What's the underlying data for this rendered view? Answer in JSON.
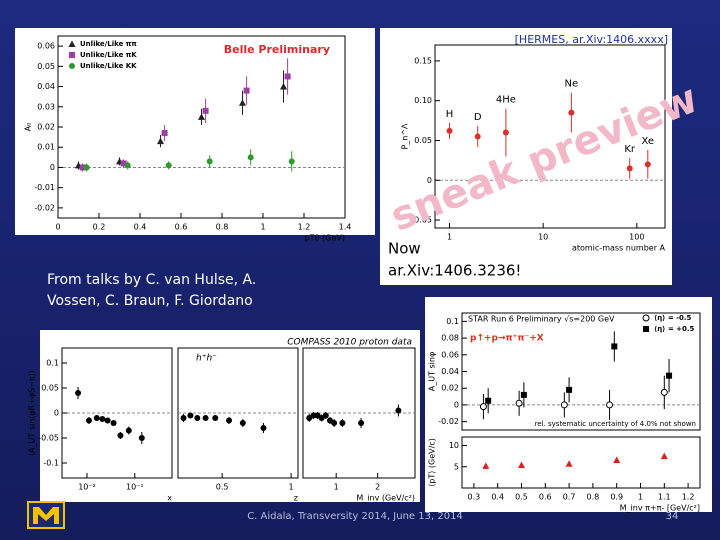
{
  "slide": {
    "credit": [
      "From talks by C. van Hulse, A.",
      "Vossen, C. Braun, F. Giordano"
    ],
    "now_note": [
      "Now",
      "ar.Xiv:1406.3236!"
    ],
    "footer": "C. Aidala, Transversity 2014, June 13, 2014",
    "page_number": "34"
  },
  "chart_data": [
    {
      "type": "scatter",
      "title": "Belle Preliminary",
      "ylabel": "A₀",
      "xlabel": "pT0 (GeV)",
      "xlim": [
        0,
        1.4
      ],
      "xticks": [
        0,
        0.2,
        0.4,
        0.6,
        0.8,
        1,
        1.2,
        1.4
      ],
      "ylim": [
        -0.025,
        0.065
      ],
      "yticks": [
        -0.02,
        -0.01,
        0,
        0.01,
        0.02,
        0.03,
        0.04,
        0.05,
        0.06
      ],
      "legend": "top-left",
      "series": [
        {
          "name": "Unlike/Like ππ",
          "color": "#222222",
          "marker": "triangle",
          "x": [
            0.1,
            0.3,
            0.5,
            0.7,
            0.9,
            1.1
          ],
          "values": [
            0.001,
            0.003,
            0.013,
            0.025,
            0.032,
            0.04
          ],
          "errors": [
            0.002,
            0.002,
            0.003,
            0.004,
            0.006,
            0.008
          ]
        },
        {
          "name": "Unlike/Like πK",
          "color": "#9b3fa0",
          "marker": "square",
          "x": [
            0.12,
            0.32,
            0.52,
            0.72,
            0.92,
            1.12
          ],
          "values": [
            0.0,
            0.002,
            0.017,
            0.028,
            0.038,
            0.045
          ],
          "errors": [
            0.002,
            0.002,
            0.004,
            0.006,
            0.007,
            0.009
          ]
        },
        {
          "name": "Unlike/Like KK",
          "color": "#2e9a2e",
          "marker": "circle",
          "x": [
            0.14,
            0.34,
            0.54,
            0.74,
            0.94,
            1.14
          ],
          "values": [
            0.0,
            0.001,
            0.001,
            0.003,
            0.005,
            0.003
          ],
          "errors": [
            0.002,
            0.002,
            0.002,
            0.003,
            0.004,
            0.005
          ]
        }
      ]
    },
    {
      "type": "scatter",
      "title": "[HERMES, ar.Xiv:1406.xxxx]",
      "watermark": "sneak preview",
      "ylabel": "P_n^Λ",
      "xlabel": "atomic-mass number A",
      "xlog": true,
      "xlim": [
        0.7,
        200
      ],
      "xticks": [
        1,
        10,
        100
      ],
      "ylim": [
        -0.06,
        0.17
      ],
      "yticks": [
        {
          "value": -0.05,
          "label": "-0.05"
        },
        0,
        {
          "value": 0.05,
          "label": "0.05"
        },
        {
          "value": 0.1,
          "label": "0.10"
        },
        {
          "value": 0.15,
          "label": "0.15"
        }
      ],
      "series": [
        {
          "color": "#d9302c",
          "marker": "circle",
          "x": [
            1,
            2,
            4,
            20,
            84,
            131
          ],
          "values": [
            0.062,
            0.055,
            0.06,
            0.085,
            0.015,
            0.02
          ],
          "errors": [
            0.01,
            0.013,
            0.03,
            0.025,
            0.013,
            0.018
          ],
          "point_labels": [
            "H",
            "D",
            "4He",
            "Ne",
            "Kr",
            "Xe"
          ]
        }
      ]
    },
    {
      "type": "scatter",
      "title": "COMPASS 2010 proton data",
      "ylabel": "⟨A_UT sin(φR+φS−π)⟩",
      "xlabel": "x",
      "xlog": true,
      "xlim": [
        0.003,
        0.6
      ],
      "xticks": [
        {
          "value": 0.01,
          "label": "10⁻²"
        },
        {
          "value": 0.1,
          "label": "10⁻¹"
        }
      ],
      "ylim": [
        -0.13,
        0.13
      ],
      "yticks": [
        -0.1,
        -0.05,
        0,
        0.05,
        0.1
      ],
      "series": [
        {
          "color": "#000000",
          "marker": "circle",
          "x": [
            0.0065,
            0.011,
            0.016,
            0.021,
            0.027,
            0.036,
            0.05,
            0.075,
            0.14
          ],
          "values": [
            0.04,
            -0.015,
            -0.01,
            -0.012,
            -0.015,
            -0.02,
            -0.045,
            -0.035,
            -0.05
          ],
          "errors": [
            0.012,
            0.007,
            0.006,
            0.006,
            0.006,
            0.006,
            0.007,
            0.008,
            0.012
          ]
        }
      ]
    },
    {
      "type": "scatter",
      "panel_label": "h⁺h⁻",
      "xlabel": "z",
      "xlim": [
        0.18,
        1.05
      ],
      "xticks": [
        0.5,
        1
      ],
      "ylim": [
        -0.13,
        0.13
      ],
      "series": [
        {
          "color": "#000000",
          "marker": "circle",
          "x": [
            0.22,
            0.27,
            0.32,
            0.38,
            0.45,
            0.55,
            0.65,
            0.8
          ],
          "values": [
            -0.01,
            -0.005,
            -0.01,
            -0.01,
            -0.01,
            -0.015,
            -0.02,
            -0.03
          ],
          "errors": [
            0.008,
            0.006,
            0.006,
            0.006,
            0.006,
            0.007,
            0.008,
            0.01
          ]
        }
      ]
    },
    {
      "type": "scatter",
      "xlabel": "M_inv (GeV/c²)",
      "xlim": [
        0.2,
        2.9
      ],
      "xticks": [
        1,
        2
      ],
      "ylim": [
        -0.13,
        0.13
      ],
      "series": [
        {
          "color": "#000000",
          "marker": "circle",
          "x": [
            0.35,
            0.45,
            0.55,
            0.65,
            0.75,
            0.85,
            0.95,
            1.15,
            1.6,
            2.5
          ],
          "values": [
            -0.01,
            -0.005,
            -0.005,
            -0.01,
            -0.005,
            -0.015,
            -0.02,
            -0.02,
            -0.02,
            0.005
          ],
          "errors": [
            0.008,
            0.007,
            0.007,
            0.007,
            0.007,
            0.007,
            0.008,
            0.008,
            0.01,
            0.012
          ]
        }
      ]
    },
    {
      "type": "scatter",
      "title": "STAR Run 6 Preliminary √s=200 GeV",
      "subtitle": "p↑+p→π⁺π⁻+X",
      "note": "rel. systematic uncertainty of 4.0% not shown",
      "ylabel": "A_UT sinφ",
      "xlim": [
        0.25,
        1.25
      ],
      "ylim": [
        -0.03,
        0.11
      ],
      "yticks": [
        -0.02,
        0,
        0.02,
        0.04,
        0.06,
        0.08,
        0.1
      ],
      "legend": "top-right",
      "series": [
        {
          "name": "⟨η⟩ = -0.5",
          "color": "#000000",
          "marker": "open-circle",
          "x": [
            0.34,
            0.49,
            0.68,
            0.87,
            1.1
          ],
          "values": [
            -0.002,
            0.002,
            0.0,
            0.0,
            0.015
          ],
          "errors": [
            0.015,
            0.015,
            0.015,
            0.018,
            0.02
          ]
        },
        {
          "name": "⟨η⟩ = +0.5",
          "color": "#000000",
          "marker": "square",
          "x": [
            0.36,
            0.51,
            0.7,
            0.89,
            1.12
          ],
          "values": [
            0.005,
            0.012,
            0.018,
            0.07,
            0.035
          ],
          "errors": [
            0.015,
            0.015,
            0.015,
            0.018,
            0.02
          ]
        }
      ]
    },
    {
      "type": "scatter",
      "ylabel": "⟨pT⟩ (GeV/c)",
      "xlabel": "M_inv π+π- [GeV/c²]",
      "xlim": [
        0.25,
        1.25
      ],
      "xticks": [
        0.3,
        0.4,
        0.5,
        0.6,
        0.7,
        0.8,
        0.9,
        1,
        1.1,
        1.2
      ],
      "ylim": [
        0,
        12
      ],
      "yticks": [
        5,
        10
      ],
      "series": [
        {
          "color": "#e02020",
          "marker": "triangle",
          "x": [
            0.35,
            0.5,
            0.7,
            0.9,
            1.1
          ],
          "values": [
            5.2,
            5.4,
            5.7,
            6.6,
            7.5
          ]
        }
      ]
    }
  ]
}
